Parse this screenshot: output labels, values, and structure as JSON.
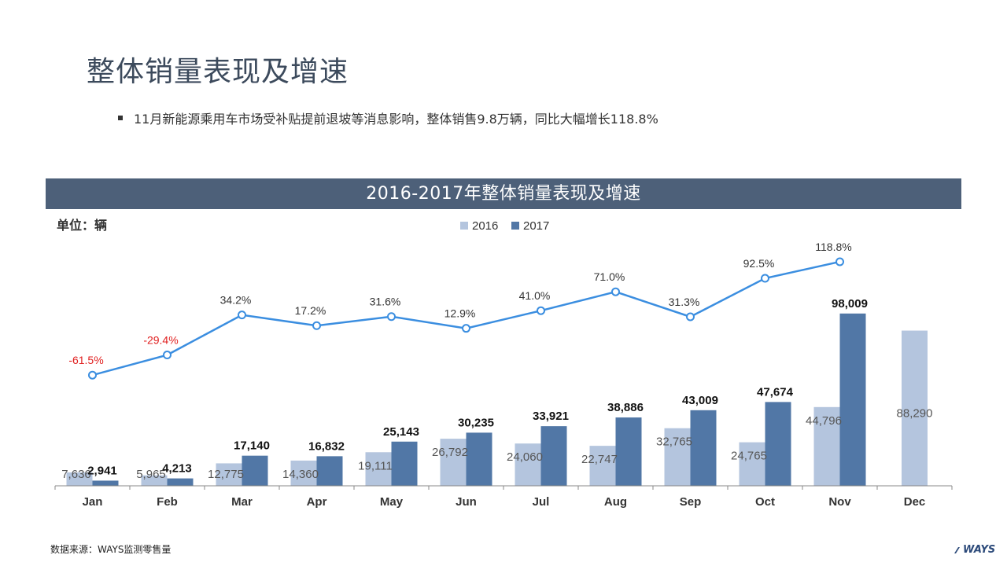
{
  "page": {
    "title": "整体销量表现及增速",
    "bullet": "11月新能源乘用车市场受补贴提前退坡等消息影响，整体销售9.8万辆，同比大幅增长118.8%",
    "source": "数据来源：WAYS监测零售量",
    "logo_text": "WAYS"
  },
  "chart_data": {
    "type": "bar",
    "title": "2016-2017年整体销量表现及增速",
    "unit_label": "单位：辆",
    "legend_position": "top-center",
    "categories": [
      "Jan",
      "Feb",
      "Mar",
      "Apr",
      "May",
      "Jun",
      "Jul",
      "Aug",
      "Sep",
      "Oct",
      "Nov",
      "Dec"
    ],
    "series": [
      {
        "name": "2016",
        "color": "#b4c5de",
        "values": [
          7636,
          5965,
          12775,
          14360,
          19111,
          26792,
          24060,
          22747,
          32765,
          24765,
          44796,
          88290
        ],
        "labels": [
          "7,636",
          "5,965",
          "12,775",
          "14,360",
          "19,111",
          "26,792",
          "24,060",
          "22,747",
          "32,765",
          "24,765",
          "44,796",
          "88,290"
        ]
      },
      {
        "name": "2017",
        "color": "#5177a6",
        "values": [
          2941,
          4213,
          17140,
          16832,
          25143,
          30235,
          33921,
          38886,
          43009,
          47674,
          98009,
          null
        ],
        "labels": [
          "2,941",
          "4,213",
          "17,140",
          "16,832",
          "25,143",
          "30,235",
          "33,921",
          "38,886",
          "43,009",
          "47,674",
          "98,009",
          ""
        ]
      }
    ],
    "growth": {
      "type": "line",
      "color": "#3b8ee0",
      "negative_color": "#e02020",
      "values": [
        -61.5,
        -29.4,
        34.2,
        17.2,
        31.6,
        12.9,
        41.0,
        71.0,
        31.3,
        92.5,
        118.8,
        null
      ],
      "labels": [
        "-61.5%",
        "-29.4%",
        "34.2%",
        "17.2%",
        "31.6%",
        "12.9%",
        "41.0%",
        "71.0%",
        "31.3%",
        "92.5%",
        "118.8%",
        ""
      ]
    },
    "ylim": [
      0,
      110000
    ],
    "growth_ylim": [
      -100,
      150
    ],
    "grid": false
  }
}
